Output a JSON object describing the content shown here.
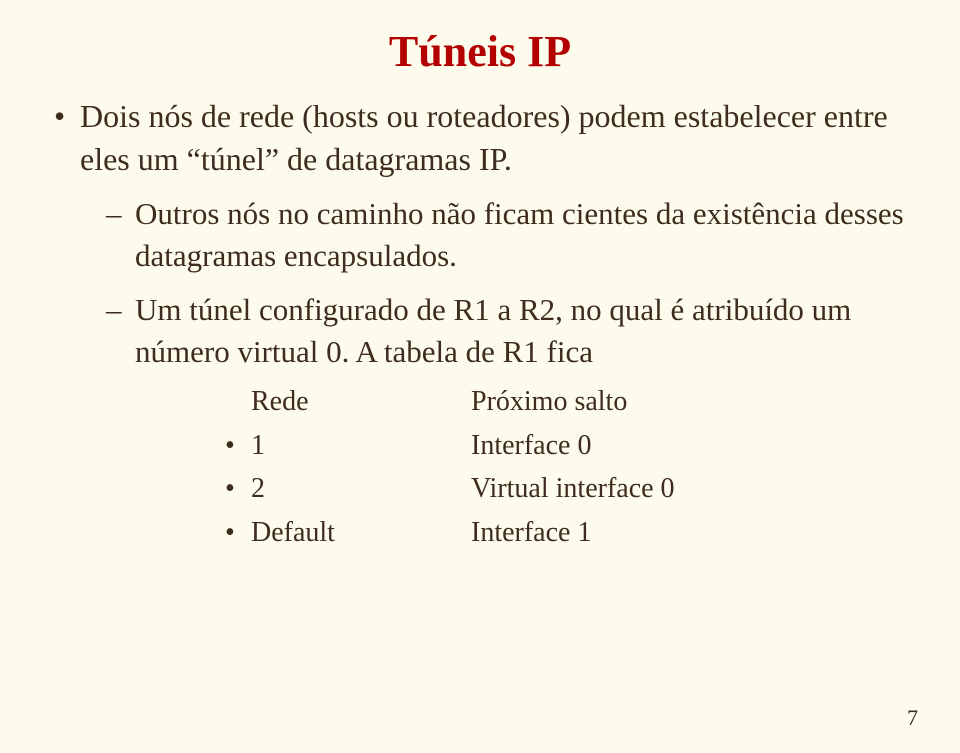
{
  "colors": {
    "background": "#fdfcec",
    "title": "#b30000",
    "text": "#3e2c1e"
  },
  "typography": {
    "family": "Times New Roman",
    "title_pt": 44,
    "body_pt": 32,
    "sub_pt": 31,
    "table_pt": 28,
    "pagenum_pt": 22
  },
  "title": "Túneis IP",
  "bullet1": "Dois nós de rede (hosts ou roteadores) podem estabelecer entre eles um “túnel” de datagramas IP.",
  "sub1": "Outros nós no caminho não ficam cientes da existência desses datagramas encapsulados.",
  "sub2": "Um túnel configurado de R1 a R2, no qual é atribuído um número virtual 0. A tabela de R1 fica",
  "table": {
    "header": {
      "a": "Rede",
      "b": "Próximo salto"
    },
    "rows": [
      {
        "a": "1",
        "b": "Interface 0"
      },
      {
        "a": "2",
        "b": "Virtual interface 0"
      },
      {
        "a": "Default",
        "b": "Interface 1"
      }
    ]
  },
  "page_number": "7"
}
